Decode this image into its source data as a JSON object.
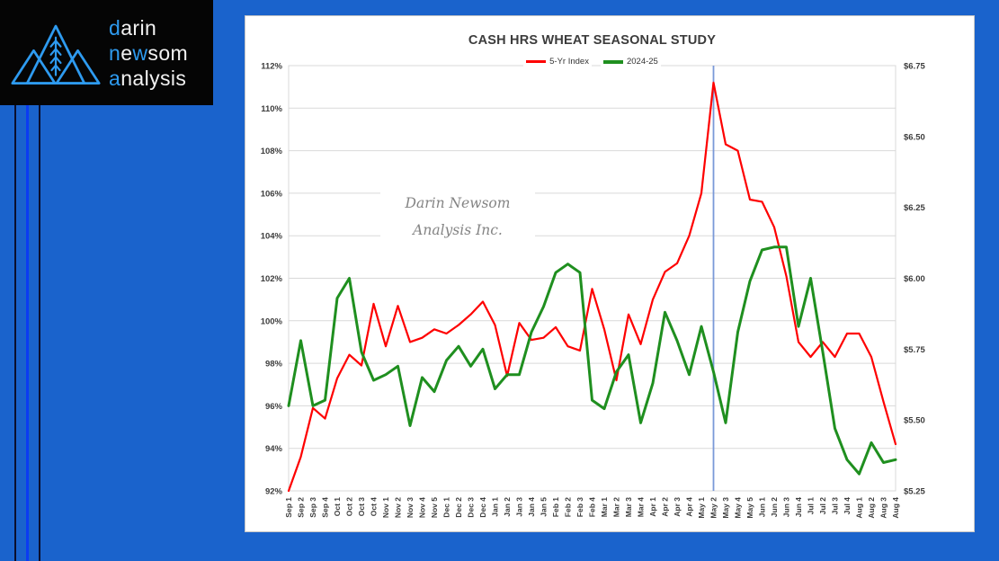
{
  "page": {
    "background_color": "#1a63cc",
    "stripe_bright_color": "#0b3bf2",
    "stripe_dark_color": "#0a0f2e"
  },
  "logo": {
    "background": "#050505",
    "accent_color": "#2e9bf0",
    "text_color": "#f2f2f2",
    "lines": [
      {
        "segments": [
          {
            "text": "d"
          },
          {
            "text": "arin"
          }
        ]
      },
      {
        "segments": [
          {
            "text": "n"
          },
          {
            "text": "e"
          },
          {
            "text": "w"
          },
          {
            "text": "som"
          }
        ]
      },
      {
        "segments": [
          {
            "text": "a"
          },
          {
            "text": "nalysis"
          }
        ]
      }
    ]
  },
  "watermark": {
    "line1": "Darin Newsom",
    "line2": "Analysis Inc."
  },
  "chart": {
    "type": "line",
    "title": "CASH HRS WHEAT SEASONAL STUDY",
    "grid": true,
    "legend_position": "top",
    "categories": [
      "Sep 1",
      "Sep 2",
      "Sep 3",
      "Sep 4",
      "Oct 1",
      "Oct 2",
      "Oct 3",
      "Oct 4",
      "Nov 1",
      "Nov 2",
      "Nov 3",
      "Nov 4",
      "Nov 5",
      "Dec 1",
      "Dec 2",
      "Dec 3",
      "Dec 4",
      "Jan 1",
      "Jan 2",
      "Jan 3",
      "Jan 4",
      "Jan 5",
      "Feb 1",
      "Feb 2",
      "Feb 3",
      "Feb 4",
      "Mar 1",
      "Mar 2",
      "Mar 3",
      "Mar 4",
      "Apr 1",
      "Apr 2",
      "Apr 3",
      "Apr 4",
      "May 1",
      "May 2",
      "May 3",
      "May 4",
      "May 5",
      "Jun 1",
      "Jun 2",
      "Jun 3",
      "Jun 4",
      "Jul 1",
      "Jul 2",
      "Jul 3",
      "Jul 4",
      "Aug 1",
      "Aug 2",
      "Aug 3",
      "Aug 4"
    ],
    "left_axis": {
      "min": 92,
      "max": 112,
      "step": 2,
      "format": "percent",
      "labels": [
        "112%",
        "110%",
        "108%",
        "106%",
        "104%",
        "102%",
        "100%",
        "98%",
        "96%",
        "94%",
        "92%"
      ]
    },
    "right_axis": {
      "min": 5.25,
      "max": 6.75,
      "step": 0.25,
      "format": "dollars",
      "labels": [
        "$6.75",
        "$6.50",
        "$6.25",
        "$6.00",
        "$5.75",
        "$5.50",
        "$5.25"
      ]
    },
    "vline": {
      "category": "May 2",
      "color": "#7a99d8"
    },
    "series": [
      {
        "name": "5-Yr Index",
        "axis": "left",
        "unit": "percent",
        "color": "#fe0000",
        "values": [
          92.0,
          93.6,
          95.9,
          95.4,
          97.3,
          98.4,
          97.9,
          100.8,
          98.8,
          100.7,
          99.0,
          99.2,
          99.6,
          99.4,
          99.8,
          100.3,
          100.9,
          99.8,
          97.4,
          99.9,
          99.1,
          99.2,
          99.7,
          98.8,
          98.6,
          101.5,
          99.6,
          97.2,
          100.3,
          98.9,
          101.0,
          102.3,
          102.7,
          104.0,
          106.0,
          111.2,
          108.3,
          108.0,
          105.7,
          105.6,
          104.4,
          102.1,
          99.0,
          98.3,
          99.0,
          98.3,
          99.4,
          99.4,
          98.3,
          96.2,
          94.2
        ]
      },
      {
        "name": "2024-25",
        "axis": "right",
        "unit": "dollars",
        "color": "#1f8f1f",
        "values": [
          5.55,
          5.78,
          5.55,
          5.57,
          5.93,
          6.0,
          5.74,
          5.64,
          5.66,
          5.69,
          5.48,
          5.65,
          5.6,
          5.71,
          5.76,
          5.69,
          5.75,
          5.61,
          5.66,
          5.66,
          5.81,
          5.9,
          6.02,
          6.05,
          6.02,
          5.57,
          5.54,
          5.67,
          5.73,
          5.49,
          5.63,
          5.88,
          5.78,
          5.66,
          5.83,
          5.67,
          5.49,
          5.81,
          5.99,
          6.1,
          6.11,
          6.11,
          5.83,
          6.0,
          5.74,
          5.47,
          5.36,
          5.31,
          5.42,
          5.35,
          5.36
        ]
      }
    ]
  }
}
